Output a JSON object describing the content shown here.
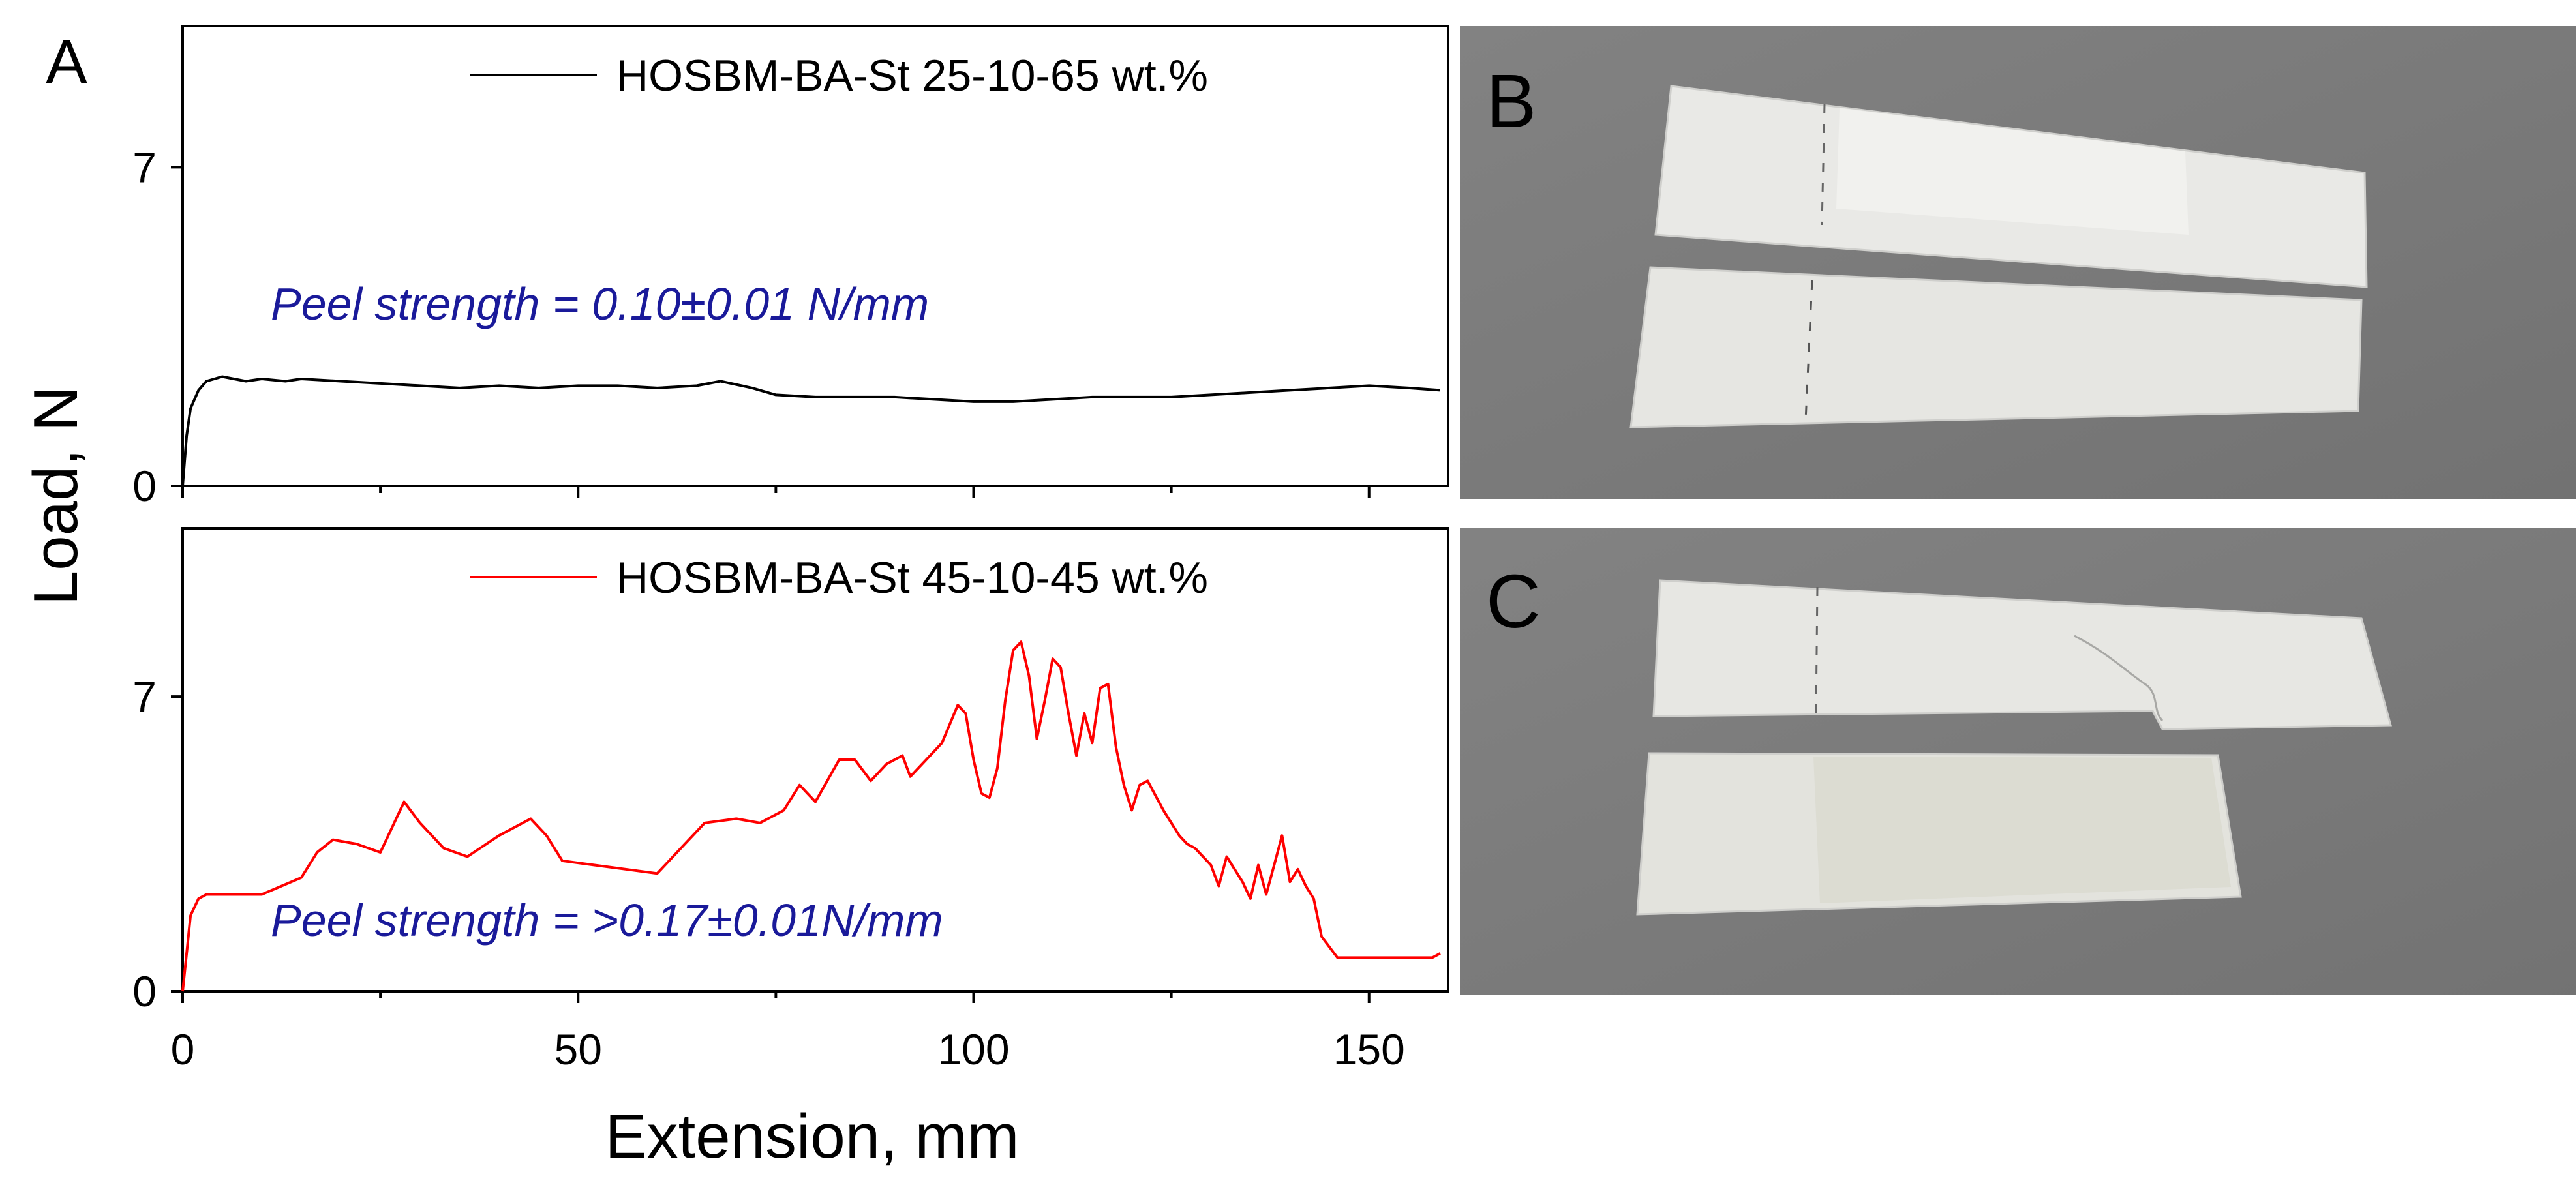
{
  "figure": {
    "panel_a_label": "A",
    "panel_b_label": "B",
    "panel_c_label": "C",
    "ylabel": "Load, N",
    "xlabel": "Extension, mm"
  },
  "chart_data": [
    {
      "type": "line",
      "panel": "A",
      "legend": "HOSBM-BA-St 25-10-65 wt.%",
      "annotation": "Peel strength = 0.10±0.01 N/mm",
      "series_color": "#000000",
      "annotation_color": "#1a1a9a",
      "xlim": [
        0,
        160
      ],
      "ylim": [
        0,
        10.1
      ],
      "x_ticks": [
        0,
        50,
        100,
        150
      ],
      "y_ticks": [
        0,
        7
      ],
      "x": [
        0,
        0.5,
        1,
        2,
        3,
        5,
        8,
        10,
        13,
        15,
        20,
        25,
        30,
        35,
        40,
        45,
        50,
        55,
        60,
        65,
        68,
        72,
        75,
        80,
        85,
        90,
        95,
        100,
        105,
        110,
        115,
        120,
        125,
        130,
        135,
        140,
        145,
        150,
        155,
        159
      ],
      "y": [
        0,
        1.1,
        1.7,
        2.1,
        2.3,
        2.4,
        2.3,
        2.35,
        2.3,
        2.35,
        2.3,
        2.25,
        2.2,
        2.15,
        2.2,
        2.15,
        2.2,
        2.2,
        2.15,
        2.2,
        2.3,
        2.15,
        2.0,
        1.95,
        1.95,
        1.95,
        1.9,
        1.85,
        1.85,
        1.9,
        1.95,
        1.95,
        1.95,
        2.0,
        2.05,
        2.1,
        2.15,
        2.2,
        2.15,
        2.1
      ]
    },
    {
      "type": "line",
      "panel": "A-lower",
      "legend": "HOSBM-BA-St 45-10-45 wt.%",
      "annotation": "Peel strength = >0.17±0.01N/mm",
      "series_color": "#ff0000",
      "annotation_color": "#1a1a9a",
      "xlim": [
        0,
        160
      ],
      "ylim": [
        0,
        11
      ],
      "x_ticks": [
        0,
        50,
        100,
        150
      ],
      "y_ticks": [
        0,
        7
      ],
      "x": [
        0,
        0.5,
        1,
        2,
        3,
        5,
        10,
        15,
        17,
        19,
        22,
        25,
        28,
        30,
        33,
        36,
        40,
        44,
        46,
        48,
        52,
        56,
        60,
        63,
        66,
        70,
        73,
        76,
        78,
        80,
        83,
        85,
        87,
        89,
        91,
        92,
        94,
        96,
        98,
        99,
        100,
        101,
        102,
        103,
        104,
        105,
        106,
        107,
        108,
        109,
        110,
        111,
        112,
        113,
        114,
        115,
        116,
        117,
        118,
        119,
        120,
        121,
        122,
        124,
        126,
        127,
        128,
        130,
        131,
        132,
        134,
        135,
        136,
        137,
        138,
        139,
        140,
        141,
        142,
        143,
        144,
        146,
        150,
        154,
        158,
        159
      ],
      "y": [
        0,
        0.9,
        1.8,
        2.2,
        2.3,
        2.3,
        2.3,
        2.7,
        3.3,
        3.6,
        3.5,
        3.3,
        4.5,
        4.0,
        3.4,
        3.2,
        3.7,
        4.1,
        3.7,
        3.1,
        3.0,
        2.9,
        2.8,
        3.4,
        4.0,
        4.1,
        4.0,
        4.3,
        4.9,
        4.5,
        5.5,
        5.5,
        5.0,
        5.4,
        5.6,
        5.1,
        5.5,
        5.9,
        6.8,
        6.6,
        5.5,
        4.7,
        4.6,
        5.3,
        6.9,
        8.1,
        8.3,
        7.5,
        6.0,
        6.9,
        7.9,
        7.7,
        6.6,
        5.6,
        6.6,
        5.9,
        7.2,
        7.3,
        5.8,
        4.9,
        4.3,
        4.9,
        5.0,
        4.3,
        3.7,
        3.5,
        3.4,
        3.0,
        2.5,
        3.2,
        2.6,
        2.2,
        3.0,
        2.3,
        3.0,
        3.7,
        2.6,
        2.9,
        2.5,
        2.2,
        1.3,
        0.8,
        0.8,
        0.8,
        0.8,
        0.9
      ]
    }
  ],
  "photos": {
    "panel_b": "two white peel-test strips on grey background, clean adhesive failure",
    "panel_c": "two white peel-test strips on grey background, cohesive/substrate failure"
  }
}
